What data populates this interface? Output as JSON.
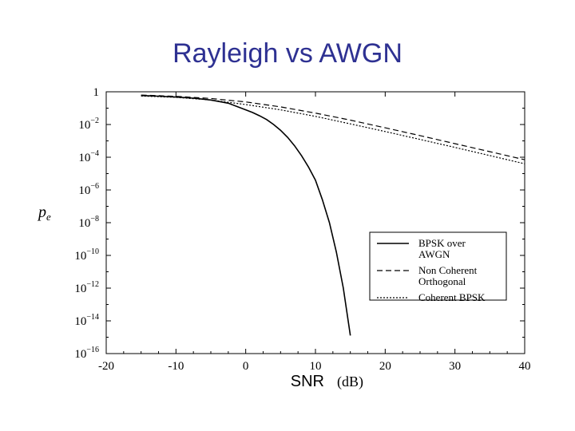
{
  "title": "Rayleigh vs AWGN",
  "colors": {
    "title": "#2e3192",
    "axes": "#000000"
  },
  "chart_data": {
    "type": "line",
    "xlabel_main": "SNR",
    "xlabel_unit": "(dB)",
    "ylabel": "p",
    "ylabel_sub": "e",
    "xlim": [
      -20,
      40
    ],
    "ylim_log10": [
      -16,
      0
    ],
    "yscale": "log",
    "x_ticks": [
      -20,
      -10,
      0,
      10,
      20,
      30,
      40
    ],
    "x_tick_labels": [
      "-20",
      "-10",
      "0",
      "10",
      "20",
      "30",
      "40"
    ],
    "y_ticks": [
      {
        "exp": 0,
        "base": "1",
        "sup": ""
      },
      {
        "exp": -2,
        "base": "10",
        "sup": "−2"
      },
      {
        "exp": -4,
        "base": "10",
        "sup": "−4"
      },
      {
        "exp": -6,
        "base": "10",
        "sup": "−6"
      },
      {
        "exp": -8,
        "base": "10",
        "sup": "−8"
      },
      {
        "exp": -10,
        "base": "10",
        "sup": "−10"
      },
      {
        "exp": -12,
        "base": "10",
        "sup": "−12"
      },
      {
        "exp": -14,
        "base": "10",
        "sup": "−14"
      },
      {
        "exp": -16,
        "base": "10",
        "sup": "−16"
      }
    ],
    "grid": false,
    "legend_placement": "lower-right",
    "legend": [
      {
        "lines": [
          "BPSK over",
          "AWGN"
        ],
        "style": "solid"
      },
      {
        "lines": [
          "Non Coherent",
          "Orthogonal"
        ],
        "style": "dashed"
      },
      {
        "lines": [
          "Coherent BPSK"
        ],
        "style": "dotted"
      }
    ],
    "series": [
      {
        "style": "solid",
        "x": [
          -15,
          -12.5,
          -10,
          -7.5,
          -5,
          -2.5,
          0,
          1,
          2,
          3,
          4,
          5,
          6,
          7,
          8,
          9,
          10,
          11,
          12,
          13,
          14,
          15
        ],
        "log10_y": [
          -0.23,
          -0.27,
          -0.32,
          -0.39,
          -0.5,
          -0.7,
          -1.1,
          -1.27,
          -1.47,
          -1.7,
          -2.0,
          -2.35,
          -2.78,
          -3.3,
          -3.9,
          -4.6,
          -5.4,
          -6.6,
          -8.0,
          -9.8,
          -12.0,
          -14.9
        ]
      },
      {
        "style": "dashed",
        "x": [
          -15,
          -10,
          -5,
          0,
          5,
          10,
          15,
          20,
          25,
          30,
          35,
          40
        ],
        "log10_y": [
          -0.2,
          -0.28,
          -0.41,
          -0.62,
          -0.92,
          -1.3,
          -1.73,
          -2.2,
          -2.68,
          -3.17,
          -3.66,
          -4.15
        ]
      },
      {
        "style": "dotted",
        "x": [
          -15,
          -10,
          -5,
          0,
          5,
          10,
          15,
          20,
          25,
          30,
          35,
          40
        ],
        "log10_y": [
          -0.26,
          -0.34,
          -0.5,
          -0.78,
          -1.1,
          -1.5,
          -1.96,
          -2.43,
          -2.91,
          -3.4,
          -3.9,
          -4.4
        ]
      }
    ]
  }
}
